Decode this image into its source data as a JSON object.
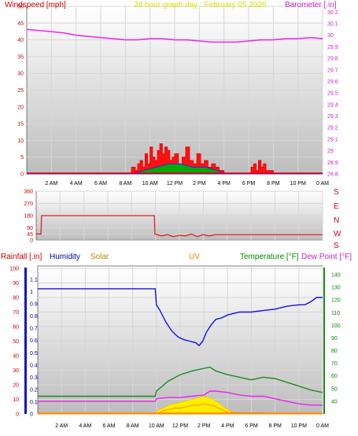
{
  "top_panel": {
    "left_title": "Windspeed [mph]",
    "center_title": "24 hour graph day : February 05 2026",
    "right_title": "Barometer [.in]"
  },
  "dir_panel": {
    "letters": [
      "S",
      "E",
      "N",
      "W",
      "S"
    ]
  },
  "bottom_panel": {
    "rain_title": "Rainfall [.in]",
    "humidity_title": "Humidity",
    "solar_title": "Solar",
    "uv_title": "UV",
    "temp_title": "Temperature [°F]",
    "dew_title": "Dew Point [°F]"
  },
  "colors": {
    "wind": "#ee0000",
    "gust_fill": "#ff1111",
    "avg_wind_blue": "#2222ff",
    "avg_wind_green": "#00aa00",
    "barometer": "#ee22ee",
    "direction": "#dd2222",
    "humidity": "#1111ee",
    "temperature": "#228822",
    "dew_point": "#ee22ee",
    "solar": "#ffee00",
    "uv": "#ff8800",
    "rain_axis": "#1111cc"
  },
  "chart_data": [
    {
      "type": "line",
      "title": "24 hour graph day : February 05 2026",
      "x_ticks": [
        "2 AM",
        "4 AM",
        "6 AM",
        "8 AM",
        "10 AM",
        "12 PM",
        "2 PM",
        "4 PM",
        "6 PM",
        "8 PM",
        "10 PM",
        "0 AM"
      ],
      "x_range_hours": [
        0,
        24
      ],
      "y_left": {
        "label": "Windspeed [mph]",
        "ticks": [
          0,
          5,
          10,
          15,
          20,
          25,
          30,
          35,
          40,
          45,
          50
        ],
        "range": [
          0,
          50
        ]
      },
      "y_right": {
        "label": "Barometer [.in]",
        "ticks": [
          "28.8",
          "28.9",
          "29",
          "29.1",
          "29.2",
          "29.3",
          "29.4",
          "29.5",
          "29.6",
          "29.7",
          "29.8",
          "29.9",
          "30",
          "30.1",
          "30.2"
        ],
        "range": [
          28.8,
          30.25
        ]
      },
      "series": [
        {
          "name": "Barometer [.in]",
          "axis": "right",
          "x": [
            0,
            1,
            2,
            3,
            4,
            5,
            6,
            7,
            8,
            9,
            10,
            11,
            12,
            13,
            14,
            15,
            16,
            17,
            18,
            19,
            20,
            21,
            22,
            23,
            24
          ],
          "values": [
            30.05,
            30.04,
            30.03,
            30.02,
            30.0,
            29.99,
            29.98,
            29.97,
            29.96,
            29.96,
            29.97,
            29.97,
            29.96,
            29.96,
            29.95,
            29.94,
            29.94,
            29.94,
            29.95,
            29.96,
            29.96,
            29.97,
            29.97,
            29.98,
            29.97
          ]
        },
        {
          "name": "Gust",
          "axis": "left",
          "x": [
            0,
            8.2,
            8.5,
            8.8,
            9.0,
            9.2,
            9.4,
            9.6,
            9.8,
            10.0,
            10.2,
            10.4,
            10.6,
            10.8,
            11.0,
            11.2,
            11.4,
            11.6,
            11.8,
            12.0,
            12.3,
            12.6,
            12.9,
            13.2,
            13.5,
            13.8,
            14.1,
            14.4,
            14.7,
            15.0,
            15.3,
            15.6,
            16.0,
            17.5,
            18.2,
            18.4,
            18.6,
            18.8,
            19.0,
            19.2,
            19.4,
            20.0,
            24
          ],
          "values": [
            0,
            0,
            2,
            1,
            3,
            4,
            2,
            6,
            3,
            8,
            5,
            4,
            7,
            9,
            6,
            8,
            7,
            4,
            5,
            6,
            3,
            5,
            8,
            4,
            3,
            6,
            3,
            4,
            2,
            3,
            2,
            1,
            0,
            0,
            2,
            3,
            1,
            4,
            2,
            3,
            1,
            0,
            0
          ]
        },
        {
          "name": "Average wind",
          "axis": "left",
          "x": [
            0,
            8.5,
            9.5,
            10.5,
            11.5,
            12.5,
            13.5,
            14.5,
            15.5,
            16.0,
            24
          ],
          "values": [
            0,
            0,
            1,
            2,
            3,
            3,
            2,
            2,
            1,
            0,
            0
          ]
        }
      ]
    },
    {
      "type": "line",
      "title": "",
      "y_left": {
        "label": "",
        "ticks": [
          0,
          45,
          90,
          180,
          270,
          360
        ],
        "range": [
          0,
          360
        ]
      },
      "series": [
        {
          "name": "Wind direction",
          "x": [
            0,
            0.4,
            0.45,
            9.9,
            9.95,
            10.5,
            11,
            11.5,
            12,
            12.5,
            13,
            13.5,
            14,
            14.5,
            15,
            24
          ],
          "values": [
            45,
            45,
            180,
            180,
            45,
            30,
            40,
            25,
            35,
            30,
            45,
            25,
            40,
            30,
            40,
            40
          ]
        }
      ]
    },
    {
      "type": "line",
      "title": "",
      "y_left": {
        "label": "Humidity",
        "ticks": [
          0,
          10,
          20,
          30,
          40,
          50,
          60,
          70,
          80,
          90,
          100
        ],
        "range": [
          0,
          100
        ]
      },
      "y_rain": {
        "label": "Rainfall [.in]",
        "ticks": [
          "0",
          "0.1",
          "0.2",
          "0.3",
          "0.4",
          "0.5",
          "0.6",
          "0.7",
          "0.8",
          "0.9",
          "1",
          "1.1"
        ],
        "range": [
          0,
          1.1
        ]
      },
      "y_right": {
        "label": "Temperature [°F]",
        "ticks": [
          40,
          50,
          60,
          70,
          80,
          90,
          100,
          110,
          120,
          130,
          140
        ],
        "range": [
          30,
          145
        ]
      },
      "series": [
        {
          "name": "Humidity",
          "axis": "left",
          "x": [
            0,
            9.9,
            10.0,
            10.3,
            10.8,
            11.3,
            11.8,
            12.3,
            12.8,
            13.3,
            13.6,
            13.9,
            14.2,
            14.6,
            15.0,
            15.5,
            16.0,
            17.0,
            18.0,
            19.0,
            20.0,
            21.0,
            22.0,
            22.5,
            23.0,
            23.5,
            24
          ],
          "values": [
            86,
            86,
            75,
            71,
            63,
            57,
            53,
            51,
            50,
            49,
            47,
            50,
            56,
            61,
            65,
            66,
            68,
            70,
            70,
            71,
            72,
            74,
            75,
            75,
            77,
            80,
            80
          ]
        },
        {
          "name": "Temperature [°F]",
          "axis": "right",
          "x": [
            0,
            9.9,
            10.0,
            11,
            12,
            13,
            14,
            14.5,
            15,
            16,
            17,
            18,
            19,
            20,
            21,
            22,
            23,
            24
          ],
          "values": [
            44,
            44,
            48,
            56,
            61,
            64,
            66,
            67,
            64,
            61,
            59,
            57,
            59,
            58,
            55,
            52,
            49,
            47
          ]
        },
        {
          "name": "Dew Point [°F]",
          "axis": "right",
          "x": [
            0,
            9.9,
            10.0,
            11,
            12,
            13,
            14,
            14.5,
            15,
            16,
            17,
            18,
            19,
            20,
            21,
            22,
            23,
            24
          ],
          "values": [
            40,
            40,
            42,
            43,
            43,
            44,
            45,
            48,
            48,
            47,
            45,
            44,
            44,
            42,
            40,
            38,
            37,
            37
          ]
        },
        {
          "name": "Solar",
          "axis": "left",
          "x": [
            0,
            9.9,
            10.2,
            10.6,
            11,
            11.5,
            12,
            12.5,
            13,
            13.5,
            14,
            14.5,
            15,
            15.5,
            16,
            16.5,
            17,
            24
          ],
          "values": [
            0,
            0,
            3,
            4,
            6,
            7,
            8,
            9,
            10,
            11,
            12,
            11,
            9,
            6,
            3,
            1,
            0,
            0
          ]
        },
        {
          "name": "UV",
          "axis": "left",
          "x": [
            0,
            10.0,
            10.5,
            11,
            11.5,
            12,
            12.5,
            13,
            13.5,
            14,
            14.5,
            15,
            15.5,
            16,
            24
          ],
          "values": [
            0,
            0,
            2,
            3,
            4,
            4,
            5,
            6,
            6,
            7,
            6,
            5,
            3,
            1,
            0
          ]
        }
      ]
    }
  ]
}
